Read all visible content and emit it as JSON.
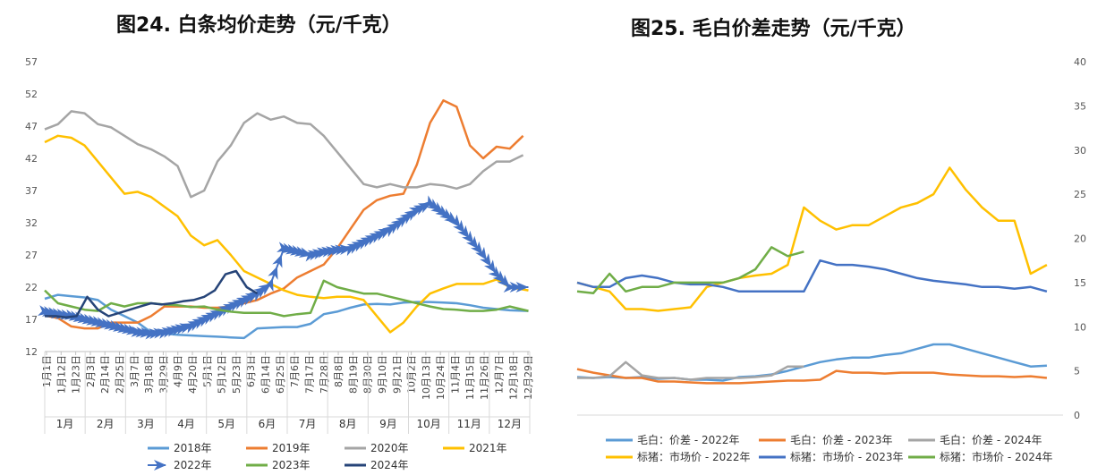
{
  "chart_data": [
    {
      "title": "图24. 白条均价走势（元/千克）",
      "type": "line",
      "ylim": [
        12,
        57
      ],
      "yticks": [
        "57",
        "52",
        "47",
        "42",
        "37",
        "32",
        "27",
        "22",
        "17",
        "12"
      ],
      "xticks": [
        "1月1日",
        "1月12日",
        "1月23日",
        "2月3日",
        "2月14日",
        "2月25日",
        "3月7日",
        "3月18日",
        "3月29日",
        "4月9日",
        "4月20日",
        "5月1日",
        "5月12日",
        "5月23日",
        "6月3日",
        "6月14日",
        "6月25日",
        "7月6日",
        "7月17日",
        "7月28日",
        "8月8日",
        "8月19日",
        "8月30日",
        "9月10日",
        "9月21日",
        "10月2日",
        "10月13日",
        "10月24日",
        "11月4日",
        "11月15日",
        "11月26日",
        "12月7日",
        "12月18日",
        "12月29日"
      ],
      "months": [
        "1月",
        "2月",
        "3月",
        "4月",
        "5月",
        "6月",
        "7月",
        "8月",
        "9月",
        "10月",
        "11月",
        "12月"
      ],
      "legend": "bottom",
      "series": [
        {
          "name": "2018年",
          "color": "#5b9bd5",
          "x": [
            0,
            10,
            20,
            30,
            40,
            50,
            60,
            70,
            80,
            90,
            100,
            110,
            120,
            130,
            140,
            150,
            160,
            170,
            180,
            190,
            200,
            210,
            220,
            230,
            240,
            250,
            260,
            270,
            280,
            290,
            300,
            310,
            320,
            330,
            340,
            350,
            364
          ],
          "y": [
            20.2,
            20.8,
            20.6,
            20.4,
            20.0,
            18.5,
            17.5,
            16.5,
            15.0,
            14.8,
            14.6,
            14.5,
            14.4,
            14.3,
            14.2,
            14.1,
            15.6,
            15.7,
            15.8,
            15.8,
            16.3,
            17.8,
            18.2,
            18.8,
            19.3,
            19.4,
            19.3,
            19.6,
            19.7,
            19.7,
            19.6,
            19.5,
            19.2,
            18.8,
            18.6,
            18.4,
            18.3
          ]
        },
        {
          "name": "2019年",
          "color": "#ed7d31",
          "x": [
            0,
            10,
            20,
            30,
            40,
            50,
            60,
            70,
            80,
            90,
            100,
            110,
            120,
            130,
            140,
            150,
            160,
            170,
            180,
            190,
            200,
            210,
            220,
            230,
            240,
            250,
            260,
            270,
            280,
            290,
            300,
            310,
            320,
            330,
            340,
            350,
            360
          ],
          "y": [
            17.6,
            17.2,
            15.9,
            15.6,
            15.6,
            16.5,
            16.5,
            16.5,
            17.5,
            19.0,
            19.0,
            19.0,
            18.8,
            18.8,
            19.0,
            19.5,
            20.0,
            21.0,
            21.8,
            23.5,
            24.5,
            25.5,
            28.0,
            31.0,
            34.0,
            35.5,
            36.2,
            36.5,
            41.0,
            47.5,
            51.0,
            50.0,
            44.0,
            42.0,
            43.8,
            43.5,
            45.5
          ]
        },
        {
          "name": "2020年",
          "color": "#a5a5a5",
          "x": [
            0,
            10,
            20,
            30,
            40,
            50,
            60,
            70,
            80,
            90,
            100,
            110,
            120,
            130,
            140,
            150,
            160,
            170,
            180,
            190,
            200,
            210,
            220,
            230,
            240,
            250,
            260,
            270,
            280,
            290,
            300,
            310,
            320,
            330,
            340,
            350,
            360
          ],
          "y": [
            46.5,
            47.3,
            49.3,
            49.0,
            47.3,
            46.8,
            45.5,
            44.2,
            43.4,
            42.3,
            40.8,
            36.0,
            37.0,
            41.5,
            44.0,
            47.5,
            49.0,
            48.0,
            48.5,
            47.5,
            47.3,
            45.5,
            43.0,
            40.5,
            38.0,
            37.5,
            38.0,
            37.5,
            37.5,
            38.0,
            37.8,
            37.3,
            38.0,
            40.0,
            41.5,
            41.5,
            42.5
          ]
        },
        {
          "name": "2021年",
          "color": "#ffc000",
          "x": [
            0,
            10,
            20,
            30,
            40,
            50,
            60,
            70,
            80,
            90,
            100,
            110,
            120,
            130,
            140,
            150,
            160,
            170,
            180,
            190,
            200,
            210,
            220,
            230,
            240,
            250,
            260,
            270,
            280,
            290,
            300,
            310,
            320,
            330,
            340,
            350,
            364
          ],
          "y": [
            44.5,
            45.5,
            45.2,
            44.0,
            41.5,
            39.0,
            36.5,
            36.8,
            36.0,
            34.5,
            33.0,
            30.0,
            28.5,
            29.3,
            27.0,
            24.5,
            23.5,
            22.5,
            21.5,
            20.8,
            20.5,
            20.3,
            20.5,
            20.5,
            20.0,
            17.5,
            15.0,
            16.5,
            19.0,
            21.0,
            21.8,
            22.5,
            22.5,
            22.5,
            23.2,
            22.0,
            21.5
          ]
        },
        {
          "name": "2022年",
          "color": "#4472c4",
          "arrows": true,
          "x": [
            0,
            10,
            20,
            30,
            40,
            50,
            60,
            70,
            80,
            90,
            100,
            110,
            120,
            130,
            140,
            150,
            160,
            170,
            180,
            190,
            200,
            210,
            220,
            230,
            240,
            250,
            260,
            270,
            280,
            290,
            300,
            310,
            320,
            330,
            340,
            350,
            364
          ],
          "y": [
            18.2,
            17.8,
            17.5,
            17.0,
            16.5,
            16.0,
            15.5,
            15.0,
            14.8,
            15.0,
            15.5,
            16.0,
            17.0,
            18.0,
            19.0,
            20.0,
            21.0,
            22.5,
            28.0,
            27.5,
            27.0,
            27.5,
            27.8,
            28.0,
            29.0,
            30.0,
            31.0,
            32.5,
            34.0,
            35.0,
            33.5,
            32.0,
            29.5,
            27.0,
            24.0,
            22.0,
            22.0
          ]
        },
        {
          "name": "2023年",
          "color": "#70ad47",
          "x": [
            0,
            10,
            20,
            30,
            40,
            50,
            60,
            70,
            80,
            90,
            100,
            110,
            120,
            130,
            140,
            150,
            160,
            170,
            180,
            190,
            200,
            210,
            220,
            230,
            240,
            250,
            260,
            270,
            280,
            290,
            300,
            310,
            320,
            330,
            340,
            350,
            364
          ],
          "y": [
            21.5,
            19.5,
            19.0,
            18.5,
            18.3,
            19.5,
            19.0,
            19.5,
            19.5,
            19.3,
            19.2,
            18.9,
            19.0,
            18.5,
            18.2,
            18.0,
            18.0,
            18.0,
            17.5,
            17.8,
            18.0,
            23.0,
            22.0,
            21.5,
            21.0,
            21.0,
            20.5,
            20.0,
            19.5,
            19.0,
            18.6,
            18.5,
            18.3,
            18.3,
            18.5,
            19.0,
            18.3
          ]
        },
        {
          "name": "2024年",
          "color": "#264478",
          "x": [
            0,
            8,
            16,
            24,
            32,
            40,
            48,
            56,
            64,
            72,
            80,
            88,
            96,
            104,
            112,
            120,
            128,
            136,
            144,
            152,
            160
          ],
          "y": [
            17.5,
            17.5,
            17.3,
            17.5,
            20.5,
            18.5,
            17.5,
            18.0,
            18.5,
            19.0,
            19.5,
            19.3,
            19.5,
            19.8,
            20.0,
            20.5,
            21.5,
            24.0,
            24.5,
            22.0,
            21.0
          ]
        }
      ]
    },
    {
      "title": "图25. 毛白价差走势（元/千克）",
      "type": "line",
      "ylim": [
        0,
        40
      ],
      "yticks": [
        "40",
        "35",
        "30",
        "25",
        "20",
        "15",
        "10",
        "5",
        "0"
      ],
      "legend": "bottom",
      "series": [
        {
          "name": "毛白：价差 - 2022年",
          "color": "#5b9bd5",
          "x": [
            0,
            20,
            40,
            60,
            80,
            100,
            120,
            140,
            160,
            180,
            200,
            220,
            240,
            260,
            280,
            300,
            320,
            340,
            360,
            380,
            400,
            420,
            440,
            460,
            480,
            500,
            520,
            540,
            560,
            580
          ],
          "y": [
            4.3,
            4.2,
            4.3,
            4.2,
            4.3,
            4.1,
            4.2,
            4.0,
            4.0,
            3.9,
            4.3,
            4.4,
            4.6,
            5.0,
            5.5,
            6.0,
            6.3,
            6.5,
            6.5,
            6.8,
            7.0,
            7.5,
            8.0,
            8.0,
            7.5,
            7.0,
            6.5,
            6.0,
            5.5,
            5.6
          ]
        },
        {
          "name": "毛白：价差 - 2023年",
          "color": "#ed7d31",
          "x": [
            0,
            20,
            40,
            60,
            80,
            100,
            120,
            140,
            160,
            180,
            200,
            220,
            240,
            260,
            280,
            300,
            320,
            340,
            360,
            380,
            400,
            420,
            440,
            460,
            480,
            500,
            520,
            540,
            560,
            580
          ],
          "y": [
            5.2,
            4.8,
            4.5,
            4.2,
            4.2,
            3.8,
            3.8,
            3.7,
            3.6,
            3.6,
            3.6,
            3.7,
            3.8,
            3.9,
            3.9,
            4.0,
            5.0,
            4.8,
            4.8,
            4.7,
            4.8,
            4.8,
            4.8,
            4.6,
            4.5,
            4.4,
            4.4,
            4.3,
            4.4,
            4.2
          ]
        },
        {
          "name": "毛白：价差 - 2024年",
          "color": "#a5a5a5",
          "x": [
            0,
            20,
            40,
            60,
            80,
            100,
            120,
            140,
            160,
            180,
            200,
            220,
            240,
            260,
            280
          ],
          "y": [
            4.2,
            4.2,
            4.4,
            6.0,
            4.5,
            4.2,
            4.2,
            4.0,
            4.2,
            4.2,
            4.2,
            4.3,
            4.5,
            5.5,
            5.5
          ]
        },
        {
          "name": "标猪：市场价 - 2022年",
          "color": "#ffc000",
          "x": [
            0,
            20,
            40,
            60,
            80,
            100,
            120,
            140,
            160,
            180,
            200,
            220,
            240,
            260,
            280,
            300,
            320,
            340,
            360,
            380,
            400,
            420,
            440,
            460,
            480,
            500,
            520,
            540,
            560,
            580
          ],
          "y": [
            15.0,
            14.5,
            14.0,
            12.0,
            12.0,
            11.8,
            12.0,
            12.2,
            14.5,
            15.0,
            15.5,
            15.8,
            16.0,
            17.0,
            23.5,
            22.0,
            21.0,
            21.5,
            21.5,
            22.5,
            23.5,
            24.0,
            25.0,
            28.0,
            25.5,
            23.5,
            22.0,
            22.0,
            16.0,
            17.0
          ]
        },
        {
          "name": "标猪：市场价 - 2023年",
          "color": "#4472c4",
          "x": [
            0,
            20,
            40,
            60,
            80,
            100,
            120,
            140,
            160,
            180,
            200,
            220,
            240,
            260,
            280,
            300,
            320,
            340,
            360,
            380,
            400,
            420,
            440,
            460,
            480,
            500,
            520,
            540,
            560,
            580
          ],
          "y": [
            15.0,
            14.5,
            14.5,
            15.5,
            15.8,
            15.5,
            15.0,
            14.8,
            14.8,
            14.5,
            14.0,
            14.0,
            14.0,
            14.0,
            14.0,
            17.5,
            17.0,
            17.0,
            16.8,
            16.5,
            16.0,
            15.5,
            15.2,
            15.0,
            14.8,
            14.5,
            14.5,
            14.3,
            14.5,
            14.0
          ]
        },
        {
          "name": "标猪：市场价 - 2024年",
          "color": "#70ad47",
          "x": [
            0,
            20,
            40,
            60,
            80,
            100,
            120,
            140,
            160,
            180,
            200,
            220,
            240,
            260,
            280
          ],
          "y": [
            14.0,
            13.8,
            16.0,
            14.0,
            14.5,
            14.5,
            15.0,
            15.0,
            15.0,
            15.0,
            15.5,
            16.5,
            19.0,
            18.0,
            18.5
          ]
        }
      ]
    }
  ]
}
